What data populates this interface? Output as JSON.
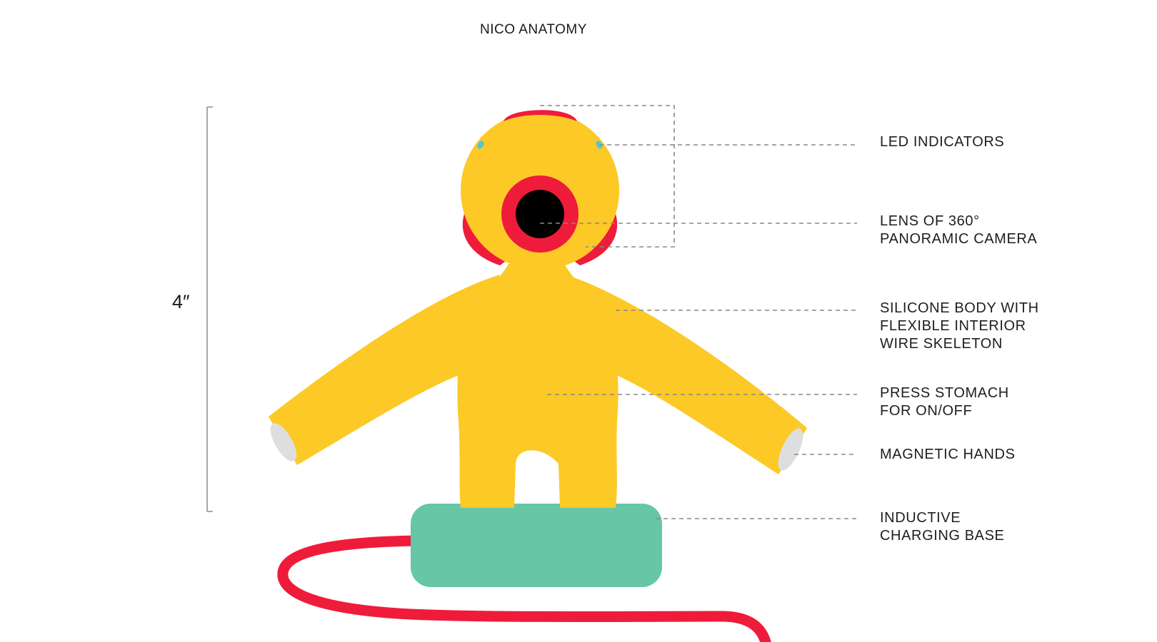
{
  "title": "NICO ANATOMY",
  "height_label": "4″",
  "colors": {
    "body": "#FCC926",
    "accent_red": "#EE1C3A",
    "lens": "#000000",
    "led": "#5BC5CD",
    "base": "#66C6A6",
    "hand_pad": "#DEDEDE",
    "leader_line": "#888888"
  },
  "callouts": [
    {
      "id": "led",
      "text": "LED INDICATORS"
    },
    {
      "id": "lens",
      "text": "LENS OF 360°\nPANORAMIC CAMERA"
    },
    {
      "id": "body",
      "text": "SILICONE BODY WITH\nFLEXIBLE INTERIOR\nWIRE SKELETON"
    },
    {
      "id": "stomach",
      "text": "PRESS STOMACH\nFOR ON/OFF"
    },
    {
      "id": "hands",
      "text": "MAGNETIC HANDS"
    },
    {
      "id": "base",
      "text": "INDUCTIVE\nCHARGING BASE"
    }
  ]
}
